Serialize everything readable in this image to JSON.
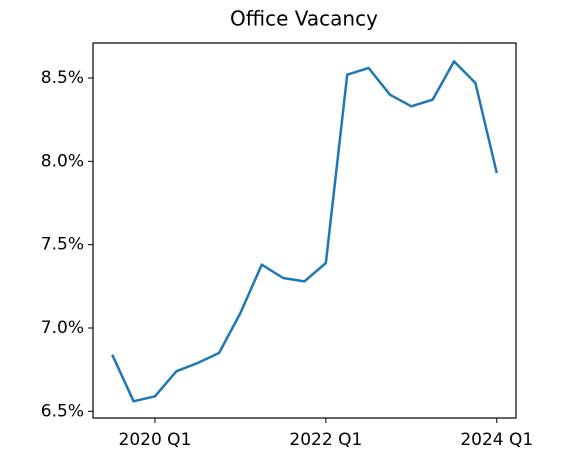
{
  "chart_data": {
    "type": "line",
    "title": "Office Vacancy",
    "categories": [
      null,
      null,
      "2020 Q1",
      null,
      null,
      null,
      null,
      null,
      null,
      null,
      "2022 Q1",
      null,
      null,
      null,
      null,
      null,
      null,
      null,
      "2024 Q1"
    ],
    "series": [
      {
        "name": "Office Vacancy",
        "color": "#1f77b4",
        "values": [
          6.84,
          6.56,
          6.59,
          6.74,
          6.79,
          6.85,
          7.09,
          7.38,
          7.3,
          7.28,
          7.39,
          8.52,
          8.56,
          8.4,
          8.33,
          8.37,
          8.6,
          8.47,
          7.93
        ]
      }
    ],
    "ylim": [
      6.46,
      8.71
    ],
    "yticks": [
      {
        "value": 6.5,
        "label": "6.5%"
      },
      {
        "value": 7.0,
        "label": "7.0%"
      },
      {
        "value": 7.5,
        "label": "7.5%"
      },
      {
        "value": 8.0,
        "label": "8.0%"
      },
      {
        "value": 8.5,
        "label": "8.5%"
      }
    ],
    "grid": false
  }
}
